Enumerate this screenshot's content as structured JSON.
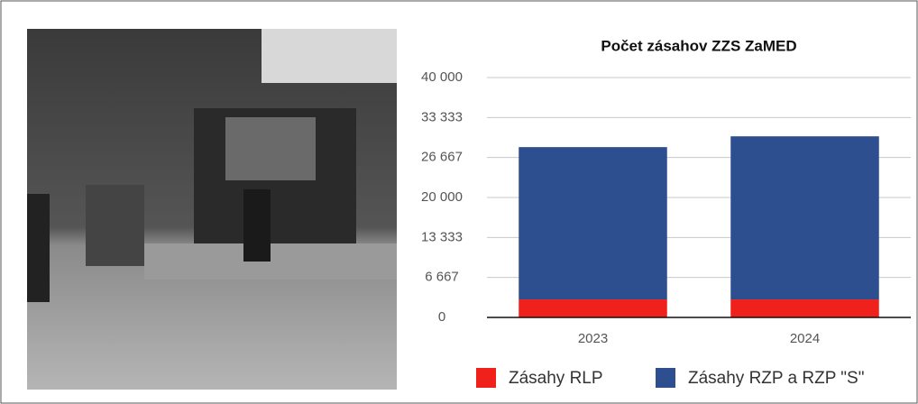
{
  "chart_data": {
    "type": "stacked_bar",
    "title": "Počet zásahov ZZS ZaMED",
    "categories": [
      "2023",
      "2024"
    ],
    "series": [
      {
        "name": "Zásahy RLP",
        "color": "#f0201a",
        "values": [
          3000,
          3000
        ]
      },
      {
        "name": "Zásahy RZP a RZP \"S\"",
        "color": "#2e4f8f",
        "values": [
          25400,
          27200
        ]
      }
    ],
    "ylim": [
      0,
      40000
    ],
    "yticks": [
      0,
      {
        "value": 6667,
        "label": "6 667"
      },
      {
        "value": 13333,
        "label": "13 333"
      },
      {
        "value": 20000,
        "label": "20 000"
      },
      {
        "value": 26667,
        "label": "26 667"
      },
      {
        "value": 33333,
        "label": "33 333"
      },
      {
        "value": 40000,
        "label": "40 000"
      }
    ],
    "grid": true,
    "legend": "bottom"
  }
}
